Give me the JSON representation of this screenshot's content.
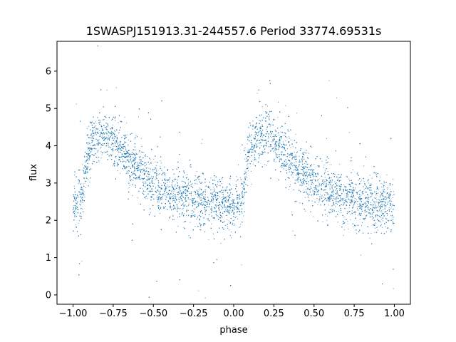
{
  "chart_data": {
    "type": "scatter",
    "title": "1SWASPJ151913.31-244557.6 Period 33774.69531s",
    "xlabel": "phase",
    "ylabel": "flux",
    "xlim": [
      -1.1,
      1.1
    ],
    "ylim": [
      -0.25,
      6.8
    ],
    "x_ticks": [
      -1.0,
      -0.75,
      -0.5,
      -0.25,
      0.0,
      0.25,
      0.5,
      0.75,
      1.0
    ],
    "x_tick_labels": [
      "−1.00",
      "−0.75",
      "−0.50",
      "−0.25",
      "0.00",
      "0.25",
      "0.50",
      "0.75",
      "1.00"
    ],
    "y_ticks": [
      0,
      1,
      2,
      3,
      4,
      5,
      6
    ],
    "y_tick_labels": [
      "0",
      "1",
      "2",
      "3",
      "4",
      "5",
      "6"
    ],
    "grid": false,
    "point_color": "#1f77b4",
    "light_curve_trend": {
      "phase": [
        0.0,
        0.05,
        0.1,
        0.15,
        0.2,
        0.25,
        0.3,
        0.35,
        0.4,
        0.45,
        0.5,
        0.55,
        0.6,
        0.65,
        0.7,
        0.75,
        0.8,
        0.85,
        0.9,
        0.95,
        1.0
      ],
      "flux": [
        2.45,
        2.5,
        3.9,
        4.3,
        4.3,
        4.15,
        3.95,
        3.65,
        3.4,
        3.2,
        3.0,
        2.85,
        2.75,
        2.65,
        2.6,
        2.55,
        2.5,
        2.45,
        2.45,
        2.45,
        2.45
      ],
      "scatter_sigma": 0.35
    },
    "series": [
      {
        "values_note_phase_range": [
          -1.0,
          1.0
        ]
      }
    ]
  }
}
